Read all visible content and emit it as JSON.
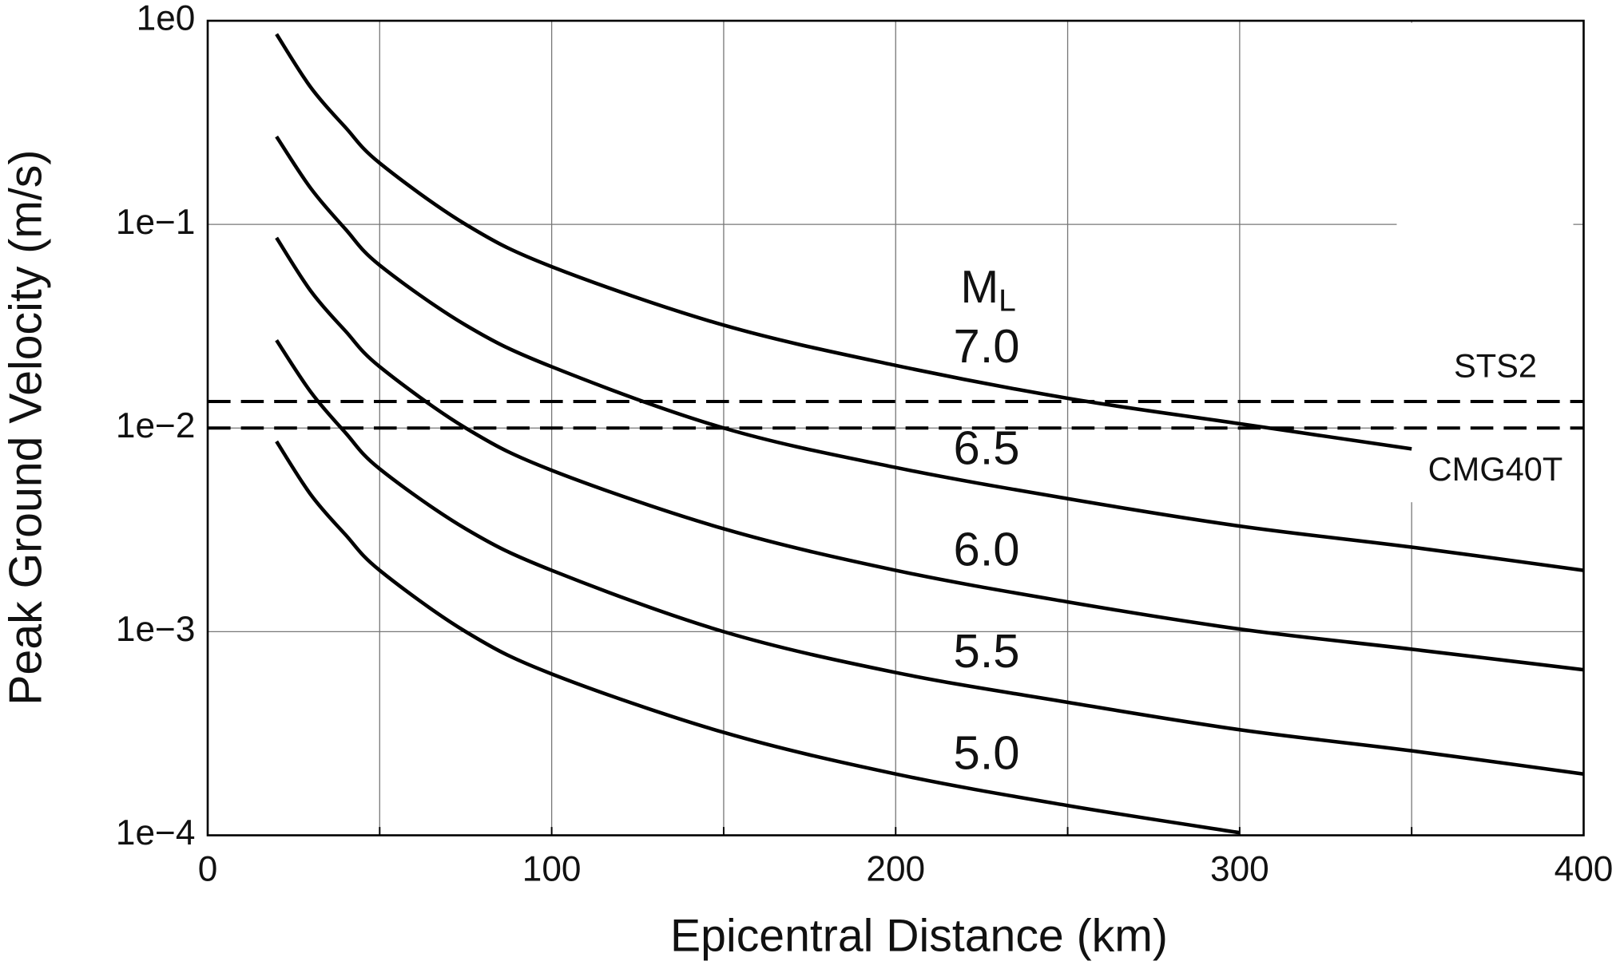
{
  "chart_data": {
    "type": "line",
    "xlabel": "Epicentral Distance (km)",
    "ylabel": "Peak Ground Velocity (m/s)",
    "log_y": true,
    "grid": true,
    "xlim": [
      0,
      400
    ],
    "ylim": [
      0.0001,
      1
    ],
    "xticks": [
      0,
      {
        "value": 50,
        "label": null
      },
      100,
      {
        "value": 150,
        "label": null
      },
      200,
      {
        "value": 250,
        "label": null
      },
      300,
      {
        "value": 350,
        "label": null
      },
      400
    ],
    "yticks": [
      {
        "value": 1,
        "label": "1e0"
      },
      {
        "value": 0.1,
        "label": "1e−1"
      },
      {
        "value": 0.01,
        "label": "1e−2"
      },
      {
        "value": 0.001,
        "label": "1e−3"
      },
      {
        "value": 0.0001,
        "label": "1e−4"
      }
    ],
    "legend_title": {
      "text": "M",
      "subscript": "L"
    },
    "x": [
      20,
      30,
      40,
      50,
      75,
      100,
      150,
      200,
      250,
      300,
      350,
      400
    ],
    "series": [
      {
        "name": "7.0",
        "color": "#000000",
        "values": [
          0.86,
          0.47,
          0.3,
          0.2,
          0.1,
          0.062,
          0.032,
          0.0203,
          0.014,
          0.0105,
          0.0079,
          null
        ]
      },
      {
        "name": "6.5",
        "color": "#000000",
        "values": [
          0.27,
          0.15,
          0.095,
          0.063,
          0.032,
          0.02,
          0.01,
          0.0064,
          0.0045,
          0.0033,
          0.0026,
          0.002
        ]
      },
      {
        "name": "6.0",
        "color": "#000000",
        "values": [
          0.086,
          0.047,
          0.03,
          0.02,
          0.01,
          0.0062,
          0.0032,
          0.002,
          0.0014,
          0.00103,
          0.00082,
          0.00065
        ]
      },
      {
        "name": "5.5",
        "color": "#000000",
        "values": [
          0.027,
          0.015,
          0.0095,
          0.0063,
          0.0032,
          0.002,
          0.001,
          0.00063,
          0.00045,
          0.00033,
          0.00026,
          0.0002
        ]
      },
      {
        "name": "5.0",
        "color": "#000000",
        "values": [
          0.0086,
          0.0047,
          0.003,
          0.002,
          0.001,
          0.00062,
          0.00032,
          0.0002,
          0.00014,
          0.000103,
          null,
          null
        ]
      }
    ],
    "reference_lines": [
      {
        "label": "STS2",
        "value": 0.0135
      },
      {
        "label": "CMG40T",
        "value": 0.01
      }
    ]
  }
}
